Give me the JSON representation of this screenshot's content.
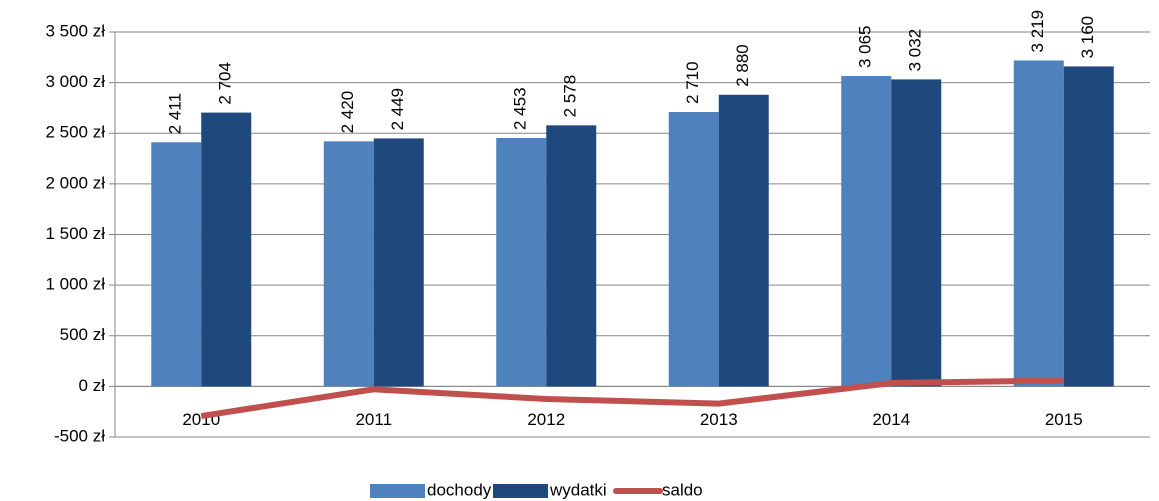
{
  "chart_data": {
    "type": "bar",
    "categories": [
      "2010",
      "2011",
      "2012",
      "2013",
      "2014",
      "2015"
    ],
    "series": [
      {
        "name": "dochody",
        "color": "#4f81bd",
        "values": [
          2411,
          2420,
          2453,
          2710,
          3065,
          3219
        ],
        "value_labels": [
          "2 411",
          "2 420",
          "2 453",
          "2 710",
          "3 065",
          "3 219"
        ]
      },
      {
        "name": "wydatki",
        "color": "#1f497d",
        "values": [
          2704,
          2449,
          2578,
          2880,
          3032,
          3160
        ],
        "value_labels": [
          "2 704",
          "2 449",
          "2 578",
          "2 880",
          "3 032",
          "3 160"
        ]
      },
      {
        "name": "saldo",
        "type": "line",
        "color": "#c0504d",
        "values": [
          -293,
          -29,
          -125,
          -170,
          33,
          59
        ]
      }
    ],
    "ylim": [
      -500,
      3500
    ],
    "yticks": [
      {
        "value": -500,
        "label": "-500 zł"
      },
      {
        "value": 0,
        "label": "0 zł"
      },
      {
        "value": 500,
        "label": "500 zł"
      },
      {
        "value": 1000,
        "label": "1 000 zł"
      },
      {
        "value": 1500,
        "label": "1 500 zł"
      },
      {
        "value": 2000,
        "label": "2 000 zł"
      },
      {
        "value": 2500,
        "label": "2 500 zł"
      },
      {
        "value": 3000,
        "label": "3 000 zł"
      },
      {
        "value": 3500,
        "label": "3 500 zł"
      }
    ],
    "grid": true,
    "legend": "bottom"
  }
}
